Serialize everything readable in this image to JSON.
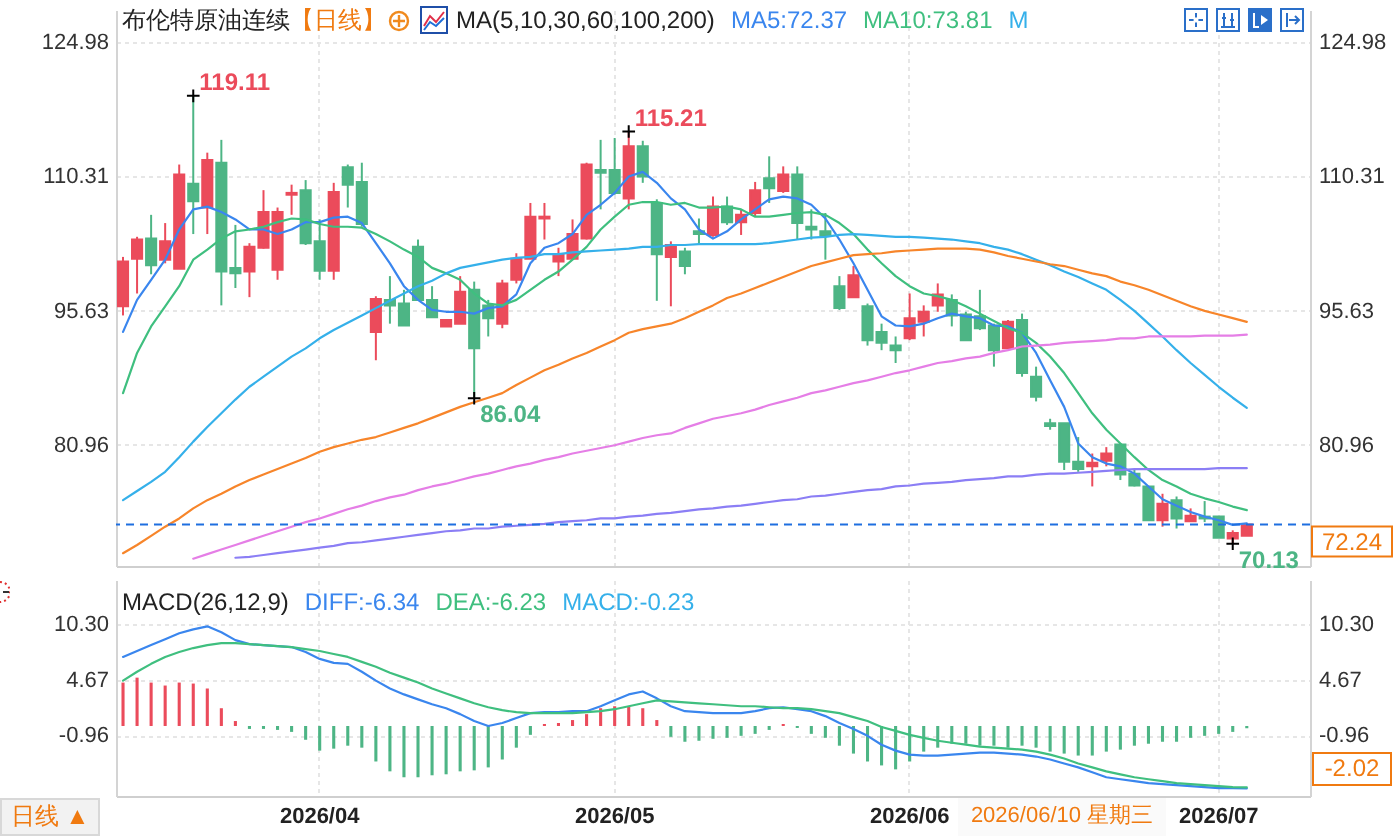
{
  "chart_data": [
    {
      "type": "candlestick",
      "title": "布伦特原油连续",
      "subtitle": "【日线】",
      "legend_title": "MA(5,10,30,60,100,200)",
      "legend": "top right",
      "grid": true,
      "tick_labels": "y",
      "categories": [
        null,
        null,
        null,
        null,
        null,
        null,
        null,
        null,
        null,
        null,
        null,
        null,
        null,
        null,
        "2026/04",
        null,
        null,
        null,
        null,
        null,
        null,
        null,
        null,
        null,
        null,
        null,
        null,
        null,
        null,
        null,
        null,
        null,
        null,
        null,
        null,
        "2026/05",
        null,
        null,
        null,
        null,
        null,
        null,
        null,
        null,
        null,
        null,
        null,
        null,
        null,
        null,
        null,
        null,
        null,
        null,
        null,
        null,
        "2026/06",
        null,
        null,
        null,
        null,
        null,
        null,
        null,
        null,
        null,
        null,
        null,
        null,
        null,
        null,
        null,
        null,
        null,
        null,
        null,
        null,
        null,
        "2026/07",
        null,
        null
      ],
      "ohlc": [
        [
          96.1,
          101.5,
          95.1,
          101.0
        ],
        [
          101.3,
          103.7,
          97.5,
          103.4
        ],
        [
          103.5,
          106.1,
          99.6,
          100.6
        ],
        [
          101.2,
          105.2,
          100.8,
          103.2
        ],
        [
          100.2,
          111.6,
          100.2,
          110.5
        ],
        [
          109.5,
          119.11,
          104.0,
          107.6
        ],
        [
          106.9,
          112.9,
          104.0,
          112.1
        ],
        [
          111.8,
          114.3,
          96.2,
          99.9
        ],
        [
          100.3,
          105.0,
          98.1,
          99.7
        ],
        [
          99.9,
          103.0,
          97.1,
          102.6
        ],
        [
          102.5,
          108.8,
          102.4,
          106.4
        ],
        [
          100.1,
          106.9,
          99.0,
          106.4
        ],
        [
          108.3,
          109.4,
          106.1,
          108.5
        ],
        [
          108.8,
          109.9,
          102.8,
          103.0
        ],
        [
          103.2,
          105.6,
          99.0,
          100.0
        ],
        [
          100.0,
          109.6,
          99.0,
          108.6
        ],
        [
          111.3,
          111.6,
          106.9,
          109.4
        ],
        [
          109.7,
          111.8,
          104.8,
          105.1
        ],
        [
          93.3,
          97.2,
          90.2,
          96.9
        ],
        [
          96.8,
          99.4,
          94.2,
          96.2
        ],
        [
          96.4,
          97.9,
          94.0,
          94.0
        ],
        [
          102.6,
          103.4,
          96.7,
          96.8
        ],
        [
          96.8,
          98.3,
          94.9,
          94.9
        ],
        [
          93.9,
          94.6,
          93.9,
          94.6
        ],
        [
          94.2,
          99.4,
          94.2,
          97.7
        ],
        [
          97.9,
          98.8,
          86.04,
          91.5
        ],
        [
          96.2,
          96.8,
          92.8,
          94.8
        ],
        [
          94.2,
          99.0,
          93.7,
          98.6
        ],
        [
          99.0,
          101.9,
          98.6,
          101.3
        ],
        [
          101.3,
          107.4,
          101.3,
          105.9
        ],
        [
          105.7,
          107.4,
          103.4,
          105.9
        ],
        [
          101.0,
          102.5,
          99.4,
          101.8
        ],
        [
          101.3,
          105.6,
          101.2,
          104.0
        ],
        [
          103.5,
          111.8,
          103.4,
          111.6
        ],
        [
          111.0,
          114.3,
          106.7,
          110.7
        ],
        [
          111.0,
          114.5,
          108.3,
          108.5
        ],
        [
          107.9,
          115.21,
          106.7,
          113.6
        ],
        [
          113.6,
          114.2,
          109.6,
          110.3
        ],
        [
          107.4,
          107.8,
          96.7,
          101.8
        ],
        [
          101.5,
          103.2,
          96.1,
          102.8
        ],
        [
          102.1,
          102.5,
          99.6,
          100.5
        ],
        [
          104.3,
          105.7,
          102.8,
          104.0
        ],
        [
          103.9,
          108.1,
          103.7,
          107.0
        ],
        [
          107.0,
          108.1,
          105.0,
          105.3
        ],
        [
          105.3,
          106.7,
          103.9,
          106.1
        ],
        [
          106.3,
          109.7,
          105.9,
          108.8
        ],
        [
          110.1,
          112.5,
          107.4,
          109.0
        ],
        [
          108.7,
          111.4,
          108.5,
          110.5
        ],
        [
          110.5,
          111.4,
          103.4,
          105.2
        ],
        [
          104.8,
          106.7,
          103.4,
          104.5
        ],
        [
          104.3,
          106.3,
          101.2,
          103.9
        ],
        [
          98.3,
          99.4,
          95.7,
          95.9
        ],
        [
          97.1,
          100.5,
          97.1,
          99.5
        ],
        [
          96.1,
          96.4,
          91.8,
          92.4
        ],
        [
          93.3,
          94.2,
          91.3,
          92.1
        ],
        [
          91.8,
          92.8,
          89.9,
          91.3
        ],
        [
          92.6,
          97.5,
          92.4,
          94.8
        ],
        [
          94.4,
          96.2,
          92.8,
          95.5
        ],
        [
          96.2,
          98.6,
          95.5,
          97.4
        ],
        [
          96.8,
          97.4,
          93.9,
          95.1
        ],
        [
          95.2,
          95.5,
          92.4,
          92.4
        ],
        [
          95.0,
          97.9,
          93.5,
          93.7
        ],
        [
          94.0,
          94.2,
          89.5,
          91.3
        ],
        [
          91.5,
          94.6,
          91.5,
          94.4
        ],
        [
          94.6,
          95.3,
          88.4,
          88.8
        ],
        [
          88.4,
          89.5,
          85.7,
          86.2
        ],
        [
          83.3,
          83.8,
          82.6,
          83.0
        ],
        [
          83.3,
          83.3,
          78.2,
          79.1
        ],
        [
          79.1,
          81.8,
          78.0,
          78.3
        ],
        [
          78.6,
          80.0,
          76.4,
          79.0
        ],
        [
          79.2,
          80.7,
          78.6,
          80.0
        ],
        [
          81.0,
          81.1,
          77.1,
          77.7
        ],
        [
          77.8,
          78.2,
          76.4,
          76.5
        ],
        [
          76.4,
          76.4,
          72.7,
          72.7
        ],
        [
          72.7,
          75.6,
          72.0,
          74.5
        ],
        [
          74.9,
          75.3,
          71.8,
          72.9
        ],
        [
          72.6,
          74.0,
          72.6,
          73.2
        ],
        [
          73.1,
          74.8,
          72.5,
          72.9
        ],
        [
          73.1,
          73.1,
          70.8,
          70.8
        ],
        [
          70.7,
          71.6,
          70.13,
          71.3
        ],
        [
          71.0,
          72.24,
          71.0,
          72.24
        ]
      ],
      "colors": [
        "#eb4b5b",
        "#eb4b5b",
        "#4db585",
        "#eb4b5b",
        "#eb4b5b",
        "#4db585",
        "#eb4b5b",
        "#4db585",
        "#4db585",
        "#eb4b5b",
        "#eb4b5b",
        "#eb4b5b",
        "#eb4b5b",
        "#4db585",
        "#4db585",
        "#eb4b5b",
        "#4db585",
        "#4db585",
        "#eb4b5b",
        "#4db585",
        "#4db585",
        "#4db585",
        "#4db585",
        "#eb4b5b",
        "#eb4b5b",
        "#4db585",
        "#4db585",
        "#eb4b5b",
        "#eb4b5b",
        "#eb4b5b",
        "#eb4b5b",
        "#eb4b5b",
        "#eb4b5b",
        "#eb4b5b",
        "#4db585",
        "#4db585",
        "#eb4b5b",
        "#4db585",
        "#4db585",
        "#eb4b5b",
        "#4db585",
        "#4db585",
        "#eb4b5b",
        "#4db585",
        "#eb4b5b",
        "#eb4b5b",
        "#4db585",
        "#eb4b5b",
        "#4db585",
        "#4db585",
        "#4db585",
        "#4db585",
        "#eb4b5b",
        "#4db585",
        "#4db585",
        "#4db585",
        "#eb4b5b",
        "#eb4b5b",
        "#eb4b5b",
        "#4db585",
        "#4db585",
        "#4db585",
        "#4db585",
        "#eb4b5b",
        "#4db585",
        "#4db585",
        "#4db585",
        "#4db585",
        "#4db585",
        "#eb4b5b",
        "#eb4b5b",
        "#4db585",
        "#4db585",
        "#4db585",
        "#eb4b5b",
        "#4db585",
        "#eb4b5b",
        "#4db585",
        "#4db585",
        "#eb4b5b",
        "#eb4b5b"
      ],
      "series": [
        {
          "name": "MA5:72.37",
          "type": "line",
          "color": "#3a86ee",
          "values": [
            93.3,
            96.8,
            99.0,
            101.2,
            104.5,
            106.7,
            107.0,
            106.4,
            105.6,
            104.5,
            104.5,
            104.0,
            104.5,
            105.3,
            105.3,
            105.8,
            105.9,
            105.2,
            103.0,
            100.8,
            98.3,
            96.8,
            95.7,
            95.5,
            95.5,
            95.3,
            95.9,
            96.1,
            97.4,
            100.8,
            102.5,
            103.0,
            104.0,
            106.1,
            107.2,
            108.5,
            110.3,
            110.8,
            109.6,
            107.9,
            106.7,
            104.5,
            103.5,
            104.3,
            105.6,
            106.7,
            107.8,
            108.1,
            107.9,
            107.2,
            105.7,
            103.4,
            100.8,
            97.9,
            95.0,
            94.0,
            93.9,
            94.2,
            94.8,
            95.3,
            95.0,
            94.8,
            94.0,
            93.9,
            93.2,
            91.0,
            88.0,
            85.1,
            81.1,
            79.6,
            78.9,
            78.6,
            77.8,
            76.4,
            75.0,
            74.3,
            73.6,
            73.1,
            72.7,
            72.2,
            72.37
          ]
        },
        {
          "name": "MA10:73.81",
          "type": "line",
          "color": "#3fbf7f",
          "values": [
            86.6,
            91.0,
            93.9,
            96.1,
            98.3,
            101.2,
            102.3,
            103.5,
            104.3,
            104.5,
            104.8,
            105.3,
            105.7,
            105.6,
            105.1,
            104.8,
            104.8,
            104.7,
            104.0,
            103.2,
            102.3,
            101.5,
            100.3,
            99.7,
            99.0,
            97.5,
            96.4,
            96.2,
            96.8,
            97.9,
            99.0,
            99.9,
            101.2,
            102.6,
            104.5,
            105.9,
            107.2,
            107.5,
            107.5,
            107.2,
            107.4,
            106.9,
            106.9,
            107.0,
            106.7,
            105.9,
            105.9,
            106.1,
            106.3,
            106.4,
            106.1,
            105.2,
            104.0,
            102.3,
            100.8,
            99.4,
            98.3,
            97.5,
            97.2,
            96.8,
            96.1,
            95.3,
            94.5,
            93.7,
            93.2,
            92.1,
            90.6,
            88.8,
            86.6,
            84.4,
            82.6,
            81.1,
            79.6,
            78.2,
            77.1,
            76.4,
            75.6,
            75.1,
            74.7,
            74.2,
            73.81
          ]
        },
        {
          "name": "M",
          "type": "line",
          "color": "#35b0ea",
          "values": [
            74.9,
            75.9,
            76.9,
            78.0,
            79.6,
            81.3,
            82.9,
            84.4,
            85.9,
            87.3,
            88.4,
            89.5,
            90.6,
            91.5,
            92.6,
            93.5,
            94.3,
            95.1,
            95.9,
            96.7,
            97.5,
            98.3,
            98.9,
            99.7,
            100.3,
            100.6,
            100.9,
            101.2,
            101.4,
            101.5,
            101.8,
            101.8,
            102.0,
            102.1,
            102.2,
            102.3,
            102.4,
            102.6,
            102.6,
            102.8,
            102.8,
            102.9,
            102.9,
            102.9,
            102.9,
            102.9,
            103.0,
            103.2,
            103.4,
            103.6,
            103.7,
            103.9,
            104.0,
            103.9,
            103.8,
            103.7,
            103.7,
            103.6,
            103.5,
            103.4,
            103.2,
            103.0,
            102.6,
            102.3,
            101.8,
            101.2,
            100.6,
            99.9,
            99.3,
            98.6,
            97.9,
            96.8,
            95.6,
            94.2,
            92.8,
            91.3,
            89.9,
            88.6,
            87.3,
            86.1,
            85.0
          ]
        },
        {
          "type": "line",
          "color": "#f7852a",
          "values": [
            69.1,
            70.0,
            71.0,
            72.0,
            72.9,
            74.0,
            74.9,
            75.6,
            76.4,
            77.1,
            77.7,
            78.3,
            78.9,
            79.5,
            80.2,
            80.7,
            81.1,
            81.5,
            81.8,
            82.3,
            82.8,
            83.3,
            83.9,
            84.5,
            85.1,
            85.6,
            86.1,
            86.6,
            87.5,
            88.3,
            89.1,
            89.7,
            90.4,
            91.0,
            91.7,
            92.4,
            93.2,
            93.6,
            93.9,
            94.2,
            94.8,
            95.5,
            96.2,
            97.0,
            97.5,
            98.1,
            98.7,
            99.3,
            99.9,
            100.5,
            100.9,
            101.3,
            101.7,
            101.8,
            101.9,
            102.1,
            102.2,
            102.3,
            102.4,
            102.4,
            102.4,
            102.3,
            102.0,
            101.6,
            101.3,
            101.0,
            100.7,
            100.5,
            100.1,
            99.7,
            99.4,
            98.8,
            98.4,
            97.9,
            97.3,
            96.7,
            96.1,
            95.6,
            95.2,
            94.8,
            94.4
          ]
        },
        {
          "type": "line",
          "color": "#e57ee6",
          "values": [
            null,
            null,
            null,
            null,
            null,
            68.5,
            69.0,
            69.5,
            70.0,
            70.5,
            71.0,
            71.5,
            72.0,
            72.5,
            72.9,
            73.4,
            73.9,
            74.3,
            74.8,
            75.2,
            75.5,
            76.0,
            76.4,
            76.7,
            77.1,
            77.5,
            77.8,
            78.2,
            78.6,
            78.9,
            79.3,
            79.6,
            80.0,
            80.3,
            80.6,
            80.9,
            81.3,
            81.7,
            82.0,
            82.2,
            82.8,
            83.3,
            83.8,
            84.1,
            84.4,
            84.8,
            85.3,
            85.7,
            86.1,
            86.6,
            86.9,
            87.3,
            87.7,
            88.0,
            88.4,
            88.8,
            89.1,
            89.5,
            89.9,
            90.1,
            90.4,
            90.6,
            91.0,
            91.3,
            91.7,
            91.8,
            91.9,
            92.1,
            92.2,
            92.3,
            92.4,
            92.6,
            92.6,
            92.8,
            92.8,
            92.8,
            92.8,
            92.9,
            92.9,
            92.9,
            93.0
          ]
        },
        {
          "type": "line",
          "color": "#8b7ef5",
          "values": [
            null,
            null,
            null,
            null,
            null,
            null,
            null,
            null,
            68.6,
            68.7,
            68.9,
            69.1,
            69.3,
            69.5,
            69.7,
            69.9,
            70.2,
            70.3,
            70.5,
            70.7,
            70.9,
            71.1,
            71.3,
            71.5,
            71.6,
            71.8,
            71.8,
            72.0,
            72.1,
            72.2,
            72.3,
            72.5,
            72.6,
            72.7,
            72.9,
            72.9,
            73.1,
            73.2,
            73.4,
            73.5,
            73.7,
            73.9,
            74.0,
            74.2,
            74.3,
            74.5,
            74.7,
            74.9,
            75.0,
            75.3,
            75.4,
            75.6,
            75.8,
            76.0,
            76.1,
            76.4,
            76.5,
            76.7,
            76.8,
            76.9,
            77.1,
            77.2,
            77.3,
            77.5,
            77.5,
            77.7,
            77.8,
            77.8,
            77.9,
            78.0,
            78.1,
            78.2,
            78.3,
            78.3,
            78.3,
            78.3,
            78.3,
            78.3,
            78.4,
            78.4,
            78.4
          ]
        }
      ],
      "ylim": [
        67.7,
        128.5
      ],
      "yticks": [
        124.98,
        110.31,
        95.63,
        80.96
      ],
      "y2lim": [
        67.7,
        128.5
      ],
      "y2ticks": [
        124.98,
        110.31,
        95.63,
        80.96
      ],
      "ref_lines": [
        {
          "axis": "y",
          "value": 72.24,
          "label": "72.24",
          "color": "#1e6fe0",
          "line_style": "dashed"
        }
      ],
      "annotations": [
        "119.11",
        "86.04",
        "115.21",
        "70.13"
      ]
    },
    {
      "type": "line",
      "title": "MACD(26,12,9)",
      "legend": "top left",
      "grid": true,
      "categories": [
        null,
        null,
        null,
        null,
        null,
        null,
        null,
        null,
        null,
        null,
        null,
        null,
        null,
        null,
        "2026/04",
        null,
        null,
        null,
        null,
        null,
        null,
        null,
        null,
        null,
        null,
        null,
        null,
        null,
        null,
        null,
        null,
        null,
        null,
        null,
        null,
        "2026/05",
        null,
        null,
        null,
        null,
        null,
        null,
        null,
        null,
        null,
        null,
        null,
        null,
        null,
        null,
        null,
        null,
        null,
        null,
        null,
        null,
        "2026/06",
        null,
        null,
        null,
        null,
        null,
        null,
        null,
        null,
        null,
        null,
        null,
        null,
        null,
        null,
        null,
        null,
        null,
        null,
        null,
        null,
        null,
        "2026/07",
        null,
        null
      ],
      "series": [
        {
          "name": "DIFF:-6.34",
          "color": "#3a86ee",
          "values": [
            7.0,
            7.6,
            8.2,
            8.8,
            9.4,
            9.8,
            10.1,
            9.5,
            8.7,
            8.3,
            8.2,
            8.1,
            8.0,
            7.5,
            6.8,
            6.4,
            6.3,
            5.5,
            4.6,
            3.8,
            3.2,
            2.7,
            2.2,
            1.8,
            1.2,
            0.5,
            0.0,
            0.3,
            0.8,
            1.3,
            1.4,
            1.4,
            1.5,
            1.5,
            2.0,
            2.6,
            3.2,
            3.5,
            2.8,
            2.0,
            1.5,
            1.4,
            1.3,
            1.3,
            1.3,
            1.5,
            1.8,
            1.9,
            1.7,
            1.5,
            1.0,
            0.3,
            -0.3,
            -1.0,
            -1.9,
            -2.5,
            -2.9,
            -3.0,
            -3.0,
            -2.9,
            -2.8,
            -2.7,
            -2.7,
            -2.8,
            -2.9,
            -3.1,
            -3.4,
            -3.8,
            -4.2,
            -4.7,
            -5.2,
            -5.4,
            -5.6,
            -5.8,
            -5.9,
            -6.0,
            -6.1,
            -6.2,
            -6.3,
            -6.3,
            -6.34
          ]
        },
        {
          "name": "DEA:-6.23",
          "color": "#3fbf7f",
          "values": [
            4.6,
            5.5,
            6.3,
            7.0,
            7.5,
            7.9,
            8.2,
            8.4,
            8.4,
            8.3,
            8.2,
            8.1,
            8.0,
            7.8,
            7.6,
            7.3,
            7.0,
            6.5,
            6.0,
            5.4,
            4.9,
            4.4,
            3.8,
            3.3,
            2.8,
            2.3,
            1.9,
            1.6,
            1.4,
            1.3,
            1.3,
            1.3,
            1.3,
            1.4,
            1.5,
            1.7,
            2.0,
            2.3,
            2.6,
            2.5,
            2.4,
            2.3,
            2.2,
            2.1,
            2.0,
            2.0,
            1.9,
            1.8,
            1.8,
            1.7,
            1.5,
            1.3,
            0.9,
            0.5,
            -0.1,
            -0.5,
            -0.9,
            -1.2,
            -1.5,
            -1.7,
            -1.9,
            -2.1,
            -2.2,
            -2.3,
            -2.4,
            -2.6,
            -2.9,
            -3.3,
            -3.8,
            -4.2,
            -4.6,
            -4.9,
            -5.2,
            -5.4,
            -5.6,
            -5.8,
            -5.9,
            -6.0,
            -6.1,
            -6.2,
            -6.23
          ]
        },
        {
          "type": "bar",
          "colors": [
            "#eb4b5b",
            "#eb4b5b",
            "#eb4b5b",
            "#eb4b5b",
            "#eb4b5b",
            "#eb4b5b",
            "#eb4b5b",
            "#eb4b5b",
            "#eb4b5b",
            "#4db585",
            "#4db585",
            "#4db585",
            "#4db585",
            "#4db585",
            "#4db585",
            "#4db585",
            "#4db585",
            "#4db585",
            "#4db585",
            "#4db585",
            "#4db585",
            "#4db585",
            "#4db585",
            "#4db585",
            "#4db585",
            "#4db585",
            "#4db585",
            "#4db585",
            "#4db585",
            "#4db585",
            "#eb4b5b",
            "#eb4b5b",
            "#eb4b5b",
            "#eb4b5b",
            "#eb4b5b",
            "#eb4b5b",
            "#eb4b5b",
            "#eb4b5b",
            "#eb4b5b",
            "#4db585",
            "#4db585",
            "#4db585",
            "#4db585",
            "#4db585",
            "#4db585",
            "#4db585",
            "#4db585",
            "#eb4b5b",
            "#4db585",
            "#4db585",
            "#4db585",
            "#4db585",
            "#4db585",
            "#4db585",
            "#4db585",
            "#4db585",
            "#4db585",
            "#4db585",
            "#4db585",
            "#4db585",
            "#4db585",
            "#4db585",
            "#4db585",
            "#4db585",
            "#4db585",
            "#4db585",
            "#4db585",
            "#4db585",
            "#4db585",
            "#4db585",
            "#4db585",
            "#4db585",
            "#4db585",
            "#4db585",
            "#4db585",
            "#4db585",
            "#4db585",
            "#4db585",
            "#4db585",
            "#4db585",
            "#4db585"
          ],
          "values": [
            4.4,
            4.9,
            4.4,
            4.1,
            4.4,
            4.3,
            3.8,
            1.8,
            0.5,
            -0.3,
            -0.3,
            -0.4,
            -0.6,
            -1.4,
            -2.5,
            -2.3,
            -2.0,
            -2.2,
            -3.6,
            -4.6,
            -5.2,
            -5.2,
            -5.0,
            -4.9,
            -4.6,
            -4.5,
            -4.2,
            -3.4,
            -2.2,
            -0.9,
            0.2,
            0.3,
            0.6,
            1.2,
            1.8,
            2.0,
            2.0,
            1.8,
            0.6,
            -1.1,
            -1.6,
            -1.5,
            -1.3,
            -1.2,
            -1.0,
            -0.8,
            -0.4,
            0.2,
            -0.2,
            -0.8,
            -1.2,
            -2.0,
            -2.8,
            -3.6,
            -4.0,
            -4.4,
            -3.6,
            -2.6,
            -2.2,
            -1.8,
            -1.8,
            -2.0,
            -2.0,
            -2.2,
            -2.0,
            -2.2,
            -2.6,
            -2.8,
            -3.0,
            -3.0,
            -2.6,
            -2.4,
            -2.0,
            -1.8,
            -1.6,
            -1.6,
            -1.2,
            -1.0,
            -0.8,
            -0.6,
            -0.23
          ]
        }
      ],
      "ylim": [
        -7.1,
        14.8
      ],
      "yticks": [
        {
          "value": 10.3,
          "label": "10.30"
        },
        4.67,
        -0.96
      ],
      "y2lim": [
        -7.1,
        14.8
      ],
      "y2ticks": [
        {
          "value": 10.3,
          "label": "10.30"
        },
        4.67,
        -0.96
      ],
      "annotations": [
        "MACD:-0.23",
        "-2.02",
        "2026/06/10 星期三",
        "日线 ▲"
      ]
    }
  ]
}
